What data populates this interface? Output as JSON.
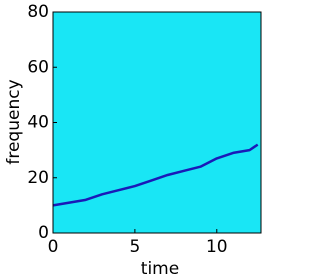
{
  "chart_data": {
    "type": "spectrogram",
    "xlabel": "time",
    "ylabel": "frequency",
    "xlim": [
      0,
      12.7
    ],
    "ylim": [
      0,
      80
    ],
    "xticks": [
      0,
      5,
      10
    ],
    "yticks": [
      0,
      20,
      40,
      60,
      80
    ],
    "background_color": "#19e6f5",
    "color": "#1a1ab8",
    "x": [
      0,
      1,
      2,
      3,
      4,
      5,
      6,
      7,
      8,
      9,
      10,
      11,
      12,
      12.5
    ],
    "values": [
      10,
      11,
      12,
      14,
      15.5,
      17,
      19,
      21,
      22.5,
      24,
      27,
      29,
      30,
      32
    ]
  }
}
